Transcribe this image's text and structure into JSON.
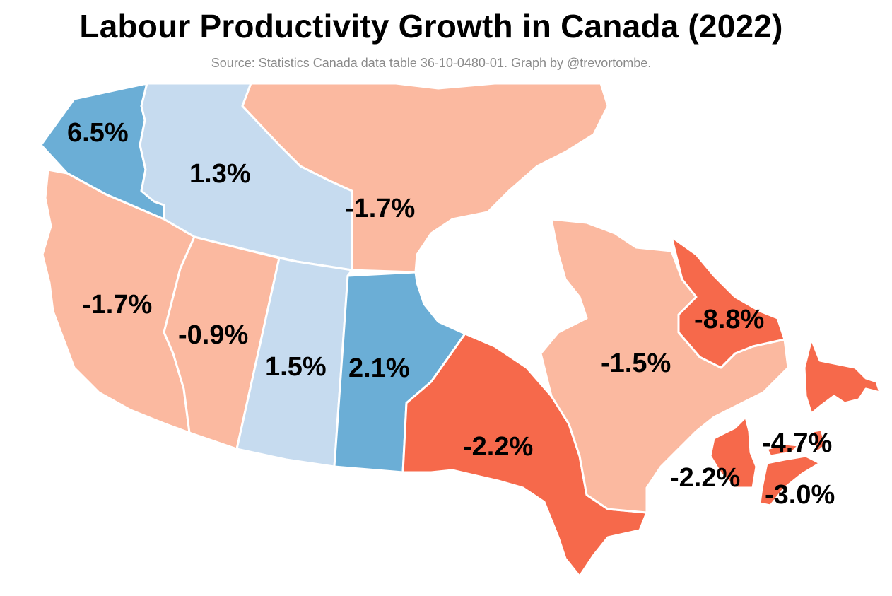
{
  "header": {
    "title": "Labour Productivity Growth in Canada (2022)",
    "subtitle": "Source: Statistics Canada data table 36-10-0480-01. Graph by @trevortombe."
  },
  "colors": {
    "strong_positive": "#6baed6",
    "weak_positive": "#c6dbef",
    "weak_negative": "#fbb9a0",
    "strong_negative": "#f6694b",
    "water": "#ffffff"
  },
  "map": {
    "metric": "Labour productivity growth, 2022",
    "regions": [
      {
        "id": "yt",
        "name": "Yukon",
        "label": "6.5%",
        "value": 6.5,
        "color_class": "strong_positive"
      },
      {
        "id": "nt",
        "name": "Northwest Territories",
        "label": "1.3%",
        "value": 1.3,
        "color_class": "weak_positive"
      },
      {
        "id": "nu",
        "name": "Nunavut",
        "label": "-1.7%",
        "value": -1.7,
        "color_class": "weak_negative"
      },
      {
        "id": "bc",
        "name": "British Columbia",
        "label": "-1.7%",
        "value": -1.7,
        "color_class": "weak_negative"
      },
      {
        "id": "ab",
        "name": "Alberta",
        "label": "-0.9%",
        "value": -0.9,
        "color_class": "weak_negative"
      },
      {
        "id": "sk",
        "name": "Saskatchewan",
        "label": "1.5%",
        "value": 1.5,
        "color_class": "weak_positive"
      },
      {
        "id": "mb",
        "name": "Manitoba",
        "label": "2.1%",
        "value": 2.1,
        "color_class": "strong_positive"
      },
      {
        "id": "on",
        "name": "Ontario",
        "label": "-2.2%",
        "value": -2.2,
        "color_class": "strong_negative"
      },
      {
        "id": "qc",
        "name": "Quebec",
        "label": "-1.5%",
        "value": -1.5,
        "color_class": "weak_negative"
      },
      {
        "id": "nl",
        "name": "Newfoundland and Labrador",
        "label": "-8.8%",
        "value": -8.8,
        "color_class": "strong_negative"
      },
      {
        "id": "nb",
        "name": "New Brunswick",
        "label": "-2.2%",
        "value": -2.2,
        "color_class": "strong_negative"
      },
      {
        "id": "pe",
        "name": "Prince Edward Island",
        "label": "-4.7%",
        "value": -4.7,
        "color_class": "strong_negative"
      },
      {
        "id": "ns",
        "name": "Nova Scotia",
        "label": "-3.0%",
        "value": -3.0,
        "color_class": "strong_negative"
      }
    ]
  }
}
